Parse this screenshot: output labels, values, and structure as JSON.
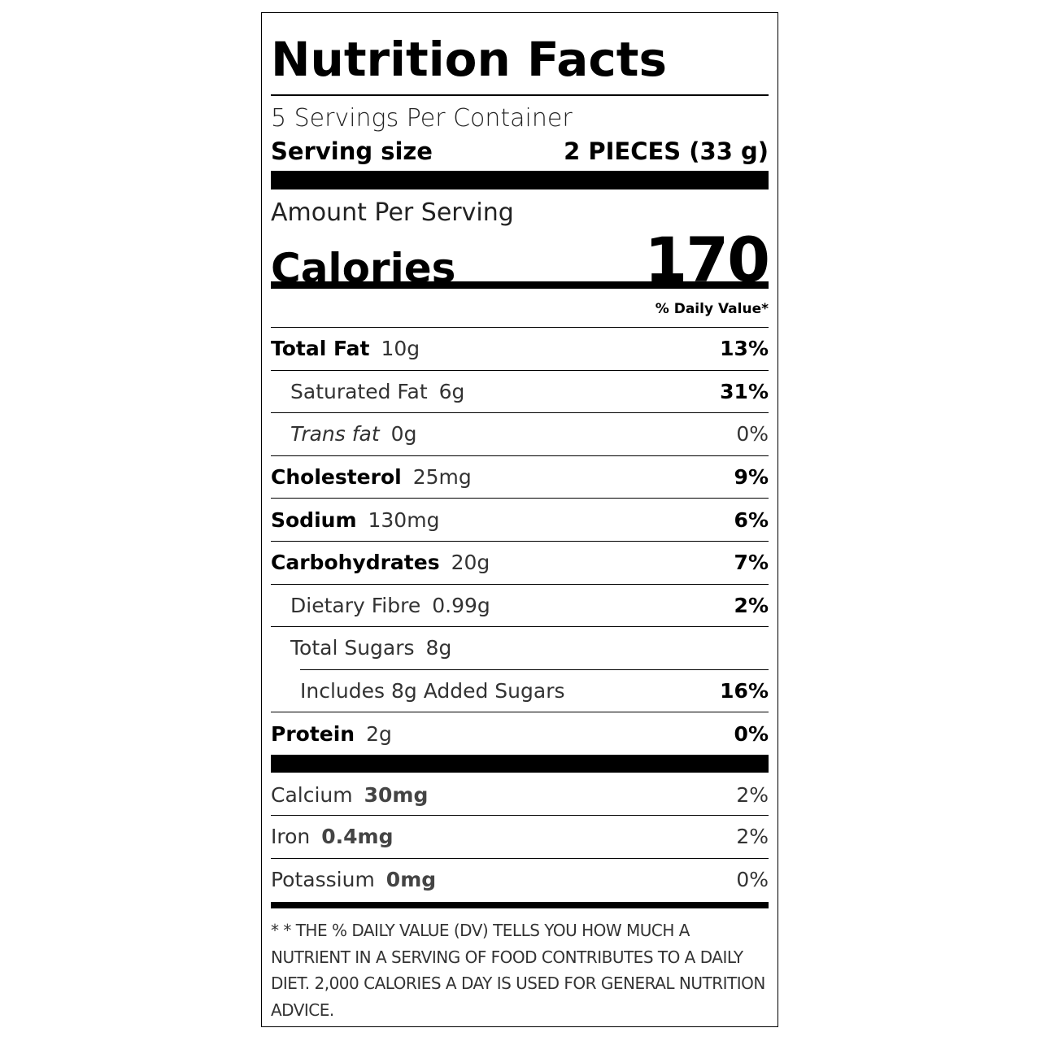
{
  "title": "Nutrition Facts",
  "servings_per_container": "5 Servings Per Container",
  "serving_size_label": "Serving size",
  "serving_size_value": "2 PIECES (33 g)",
  "amount_per_serving": "Amount Per Serving",
  "calories_label": "Calories",
  "calories_value": "170",
  "daily_value_header": "% Daily Value*",
  "nutrients": [
    {
      "name": "Total Fat",
      "amount": "10g",
      "dv": "13%",
      "style": "bold",
      "indent": 0
    },
    {
      "name": "Saturated Fat",
      "amount": "6g",
      "dv": "31%",
      "style": "light",
      "indent": 1
    },
    {
      "name": "Trans fat",
      "amount": "0g",
      "dv": "0%",
      "style": "italic",
      "indent": 1
    },
    {
      "name": "Cholesterol",
      "amount": "25mg",
      "dv": "9%",
      "style": "bold",
      "indent": 0
    },
    {
      "name": "Sodium",
      "amount": "130mg",
      "dv": "6%",
      "style": "bold",
      "indent": 0
    },
    {
      "name": "Carbohydrates",
      "amount": "20g",
      "dv": "7%",
      "style": "bold",
      "indent": 0
    },
    {
      "name": "Dietary Fibre",
      "amount": "0.99g",
      "dv": "2%",
      "style": "light",
      "indent": 1
    },
    {
      "name": "Total Sugars",
      "amount": "8g",
      "dv": "",
      "style": "light",
      "indent": 1
    },
    {
      "name": "Includes 8g Added Sugars",
      "amount": "",
      "dv": "16%",
      "style": "light",
      "indent": 2
    },
    {
      "name": "Protein",
      "amount": "2g",
      "dv": "0%",
      "style": "bold",
      "indent": 0
    }
  ],
  "minerals": [
    {
      "name": "Calcium",
      "amount": "30mg",
      "dv": "2%"
    },
    {
      "name": "Iron",
      "amount": "0.4mg",
      "dv": "2%"
    },
    {
      "name": "Potassium",
      "amount": "0mg",
      "dv": "0%"
    }
  ],
  "footnote": "* * THE % DAILY VALUE (DV) TELLS YOU HOW MUCH A NUTRIENT IN A SERVING OF FOOD CONTRIBUTES TO A DAILY DIET. 2,000 CALORIES A DAY IS USED FOR GENERAL NUTRITION ADVICE."
}
